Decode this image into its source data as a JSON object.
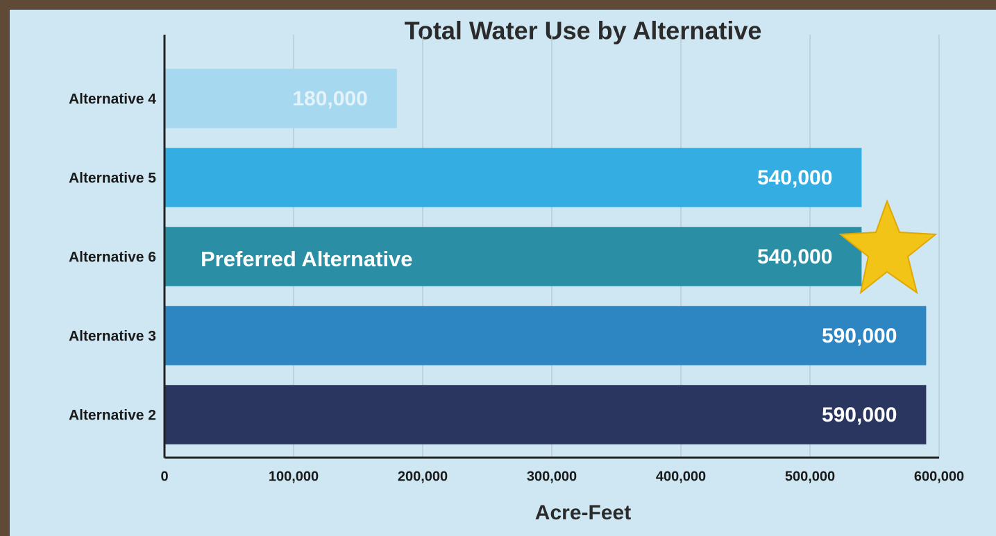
{
  "chart_data": {
    "type": "hbar",
    "title": "Total Water Use by Alternative",
    "x_label": "Acre-Feet",
    "categories": [
      "Alternative 4",
      "Alternative 5",
      "Alternative 6",
      "Alternative 3",
      "Alternative 2"
    ],
    "values": [
      180000,
      540000,
      540000,
      590000,
      590000
    ],
    "value_labels": [
      "180,000",
      "540,000",
      "540,000",
      "590,000",
      "590,000"
    ],
    "colors": [
      "#a6d8ef",
      "#33ade2",
      "#2a8fa5",
      "#2d85c2",
      "#2b3660"
    ],
    "xlim": [
      0,
      600000
    ],
    "xticks": [
      0,
      {
        "value": 100000,
        "label": "100,000"
      },
      {
        "value": 200000,
        "label": "200,000"
      },
      {
        "value": 300000,
        "label": "300,000"
      },
      {
        "value": 400000,
        "label": "400,000"
      },
      {
        "value": 500000,
        "label": "500,000"
      },
      {
        "value": 600000,
        "label": "600,000"
      }
    ],
    "grid": true,
    "annotation": {
      "text": "Preferred Alternative",
      "category": "Alternative 6"
    }
  }
}
